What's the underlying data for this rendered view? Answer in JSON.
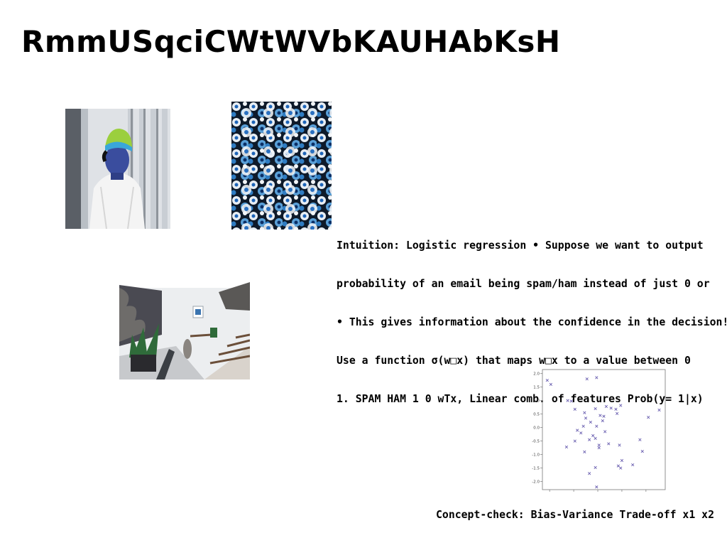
{
  "slide": {
    "title": "RmmUSqciCWtWVbKAUHAbKsH",
    "body_lines": [
      "Intuition: Logistic regression • Suppose we want to output",
      "probability of an email being spam/ham instead of just 0 or",
      "• This gives information about the confidence in the decision!",
      "Use a function σ(w□x) that maps w□x to a value between 0",
      "1. SPAM HAM 1 0 wTx, Linear comb. of features Prob(y= 1|x)"
    ],
    "caption": "Concept-check: Bias-Variance Trade-off x1 x2"
  },
  "images": {
    "photo_1": "person-in-white-hoodie-photo",
    "photo_2": "blue-white-flowers-photo",
    "photo_3": "interior-with-stairs-and-plants-photo"
  },
  "chart_data": {
    "type": "scatter",
    "marker": "x",
    "color": "#6a5fb0",
    "grid": false,
    "xlim": [
      -2.3,
      2.8
    ],
    "ylim": [
      -2.3,
      2.15
    ],
    "x_ticks": [
      "-2",
      "-1",
      "0",
      "1",
      "2"
    ],
    "y_ticks": [
      "2.0",
      "1.5",
      "1.0",
      "0.5",
      "0.0",
      "-0.5",
      "-1.0",
      "-1.5",
      "-2.0"
    ],
    "points": [
      [
        -2.1,
        1.75
      ],
      [
        -1.95,
        1.6
      ],
      [
        -0.45,
        1.8
      ],
      [
        -0.05,
        1.85
      ],
      [
        -1.25,
        1.0
      ],
      [
        -1.1,
        0.98
      ],
      [
        -0.95,
        0.68
      ],
      [
        -0.55,
        0.55
      ],
      [
        -0.1,
        0.7
      ],
      [
        0.35,
        0.78
      ],
      [
        0.55,
        0.72
      ],
      [
        0.75,
        0.68
      ],
      [
        0.95,
        0.82
      ],
      [
        0.1,
        0.45
      ],
      [
        0.25,
        0.42
      ],
      [
        0.8,
        0.52
      ],
      [
        -0.5,
        0.35
      ],
      [
        -0.3,
        0.2
      ],
      [
        0.2,
        0.25
      ],
      [
        -0.6,
        0.05
      ],
      [
        -0.85,
        -0.1
      ],
      [
        -0.7,
        -0.2
      ],
      [
        -0.05,
        0.05
      ],
      [
        -0.2,
        -0.3
      ],
      [
        0.3,
        -0.15
      ],
      [
        -0.95,
        -0.5
      ],
      [
        -0.35,
        -0.45
      ],
      [
        -0.1,
        -0.4
      ],
      [
        0.05,
        -0.65
      ],
      [
        0.05,
        -0.75
      ],
      [
        0.45,
        -0.6
      ],
      [
        0.9,
        -0.65
      ],
      [
        -1.3,
        -0.72
      ],
      [
        -0.55,
        -0.9
      ],
      [
        1.75,
        -0.45
      ],
      [
        1.85,
        -0.88
      ],
      [
        2.1,
        0.38
      ],
      [
        2.55,
        0.65
      ],
      [
        1.0,
        -1.22
      ],
      [
        1.45,
        -1.38
      ],
      [
        0.85,
        -1.42
      ],
      [
        0.95,
        -1.5
      ],
      [
        -0.1,
        -1.48
      ],
      [
        -0.35,
        -1.7
      ],
      [
        -0.05,
        -2.2
      ]
    ]
  }
}
